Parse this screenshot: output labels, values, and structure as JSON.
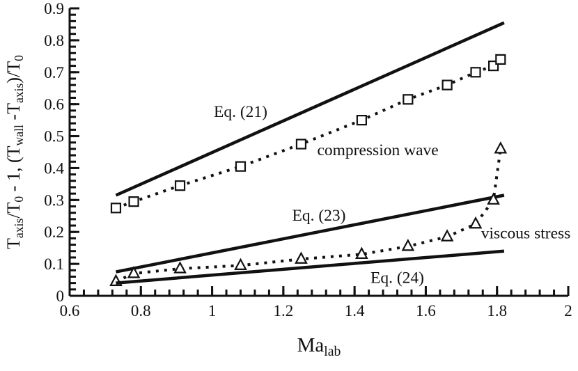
{
  "figure": {
    "background": "#ffffff",
    "ink": "#111111",
    "marker_fill": "#ffffff"
  },
  "chart_data": {
    "type": "line",
    "title": "",
    "xlabel": "Ma_lab",
    "ylabel": "T_axis/T_0 - 1, (T_wall - T_axis)/T_0",
    "xlabel_parts": [
      {
        "t": "Ma"
      },
      {
        "t": "lab",
        "sub": true
      }
    ],
    "ylabel_parts": [
      {
        "t": "T"
      },
      {
        "t": "axis",
        "sub": true
      },
      {
        "t": "/T"
      },
      {
        "t": "0",
        "sub": true
      },
      {
        "t": " - 1, (T"
      },
      {
        "t": "wall",
        "sub": true
      },
      {
        "t": " -T"
      },
      {
        "t": "axis",
        "sub": true
      },
      {
        "t": ")/T"
      },
      {
        "t": "0",
        "sub": true
      }
    ],
    "xlim": [
      0.6,
      2.0
    ],
    "ylim": [
      0.0,
      0.9
    ],
    "grid": false,
    "legend_position": "none",
    "x_minor_step": 0.04,
    "y_minor_step": 0.02,
    "x_ticks": [
      {
        "v": 0.6,
        "label": "0.6"
      },
      {
        "v": 0.8,
        "label": "0.8"
      },
      {
        "v": 1.0,
        "label": "1"
      },
      {
        "v": 1.2,
        "label": "1.2"
      },
      {
        "v": 1.4,
        "label": "1.4"
      },
      {
        "v": 1.6,
        "label": "1.6"
      },
      {
        "v": 1.8,
        "label": "1.8"
      },
      {
        "v": 2.0,
        "label": "2"
      }
    ],
    "y_ticks": [
      {
        "v": 0.0,
        "label": "0"
      },
      {
        "v": 0.1,
        "label": "0.1"
      },
      {
        "v": 0.2,
        "label": "0.2"
      },
      {
        "v": 0.3,
        "label": "0.3"
      },
      {
        "v": 0.4,
        "label": "0.4"
      },
      {
        "v": 0.5,
        "label": "0.5"
      },
      {
        "v": 0.6,
        "label": "0.6"
      },
      {
        "v": 0.7,
        "label": "0.7"
      },
      {
        "v": 0.8,
        "label": "0.8"
      },
      {
        "v": 0.9,
        "label": "0.9"
      }
    ],
    "series": [
      {
        "name": "Eq. (21)",
        "line": "solid",
        "marker": "none",
        "x": [
          0.73,
          1.82
        ],
        "y": [
          0.315,
          0.855
        ]
      },
      {
        "name": "compression wave",
        "line": "dashed",
        "marker": "square",
        "x": [
          0.73,
          0.78,
          0.91,
          1.08,
          1.25,
          1.42,
          1.55,
          1.66,
          1.74,
          1.79,
          1.81
        ],
        "y": [
          0.275,
          0.295,
          0.345,
          0.405,
          0.475,
          0.55,
          0.615,
          0.66,
          0.7,
          0.72,
          0.74
        ]
      },
      {
        "name": "Eq. (23)",
        "line": "solid",
        "marker": "none",
        "x": [
          0.73,
          1.82
        ],
        "y": [
          0.075,
          0.315
        ]
      },
      {
        "name": "viscous stress",
        "line": "dashed",
        "marker": "triangle",
        "x": [
          0.73,
          0.78,
          0.91,
          1.08,
          1.25,
          1.42,
          1.55,
          1.66,
          1.74,
          1.79,
          1.81
        ],
        "y": [
          0.045,
          0.07,
          0.085,
          0.095,
          0.115,
          0.13,
          0.155,
          0.185,
          0.225,
          0.3,
          0.46
        ]
      },
      {
        "name": "Eq. (24)",
        "line": "solid",
        "marker": "none",
        "x": [
          0.73,
          1.82
        ],
        "y": [
          0.04,
          0.14
        ]
      }
    ],
    "annotations": [
      {
        "text": "Eq. (21)",
        "x": 1.08,
        "y": 0.56,
        "anchor": "middle"
      },
      {
        "text": "compression wave",
        "x": 1.295,
        "y": 0.44,
        "anchor": "start"
      },
      {
        "text": "Eq. (23)",
        "x": 1.3,
        "y": 0.235,
        "anchor": "middle"
      },
      {
        "text": "viscous stress",
        "x": 1.755,
        "y": 0.18,
        "anchor": "start"
      },
      {
        "text": "Eq. (24)",
        "x": 1.52,
        "y": 0.04,
        "anchor": "middle"
      }
    ]
  }
}
